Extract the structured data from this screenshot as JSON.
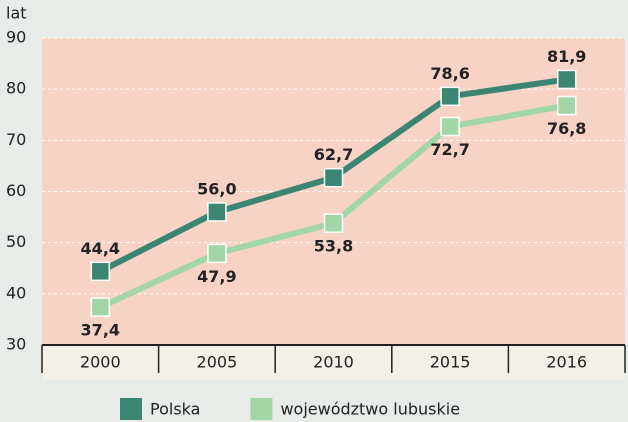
{
  "chart_data": {
    "type": "line",
    "y_label": "lat",
    "categories": [
      "2000",
      "2005",
      "2010",
      "2015",
      "2016"
    ],
    "series": [
      {
        "name": "Polska",
        "color": "#3b8672",
        "values": [
          44.4,
          56.0,
          62.7,
          78.6,
          81.9
        ],
        "value_labels": [
          "44,4",
          "56,0",
          "62,7",
          "78,6",
          "81,9"
        ]
      },
      {
        "name": "województwo lubuskie",
        "color": "#a3d6a6",
        "values": [
          37.4,
          47.9,
          53.8,
          72.7,
          76.8
        ],
        "value_labels": [
          "37,4",
          "47,9",
          "53,8",
          "72,7",
          "76,8"
        ]
      }
    ],
    "ylim": [
      30,
      90
    ],
    "yticks": [
      30,
      40,
      50,
      60,
      70,
      80,
      90
    ],
    "grid": true
  }
}
